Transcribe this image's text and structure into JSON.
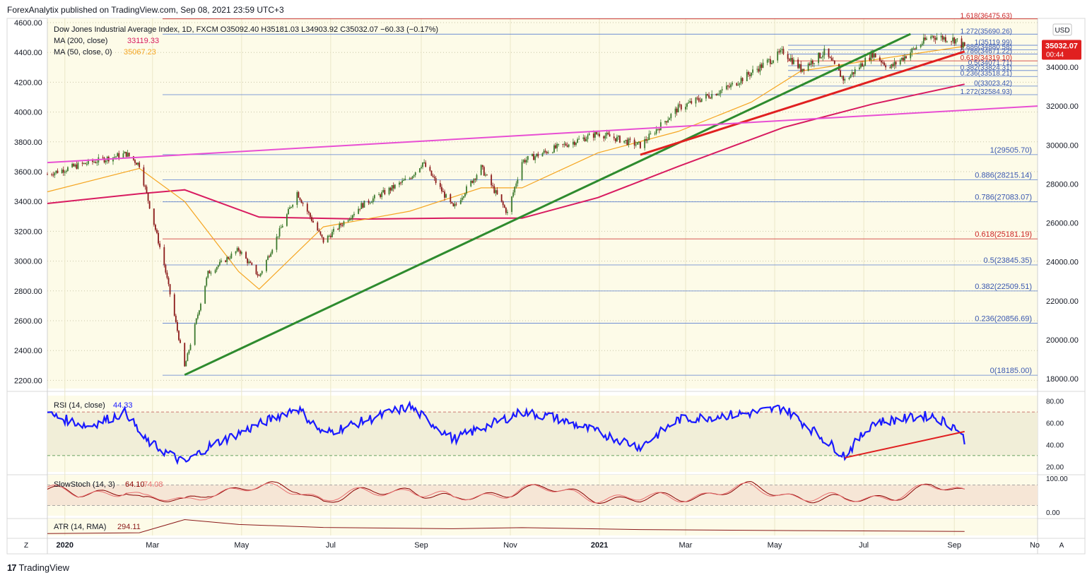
{
  "header": {
    "publisher_line": "ForexAnalytix published on TradingView.com, Sep 08, 2021 23:59 UTC+3",
    "footer_brand": "TradingView"
  },
  "legend": {
    "title_line": "Dow Jones Industrial Average Index, 1D, FXCM  O35092.40  H35181.03  L34903.92  C35032.07  −60.33 (−0.17%)",
    "ma200_label": "MA (200, close)",
    "ma200_value": "33119.33",
    "ma50_label": "MA (50, close, 0)",
    "ma50_value": "35067.23",
    "currency": "USD",
    "last_price": "35032.07",
    "countdown": "00:44",
    "rsi_label": "RSI (14, close)",
    "rsi_value": "44.33",
    "stoch_label": "SlowStoch (14, 3)",
    "stoch_k": "64.10",
    "stoch_d": "74.08",
    "atr_label": "ATR (14, RMA)",
    "atr_value": "294.11",
    "zoom_left": "Z",
    "auto_right": "A"
  },
  "colors": {
    "background": "#fdfbe8",
    "candle_up": "#3d7a2e",
    "candle_down": "#8b1a1a",
    "ma200": "#d81b60",
    "ma50": "#f5a623",
    "pink_line": "#e84fd3",
    "green_trend": "#2e8b2e",
    "red_trend": "#e02020",
    "fib_blue": "#5b7fd0",
    "rsi": "#1a1aff",
    "stoch_k": "#8b0000",
    "stoch_d": "#e87070",
    "atr": "#8b1a1a"
  },
  "chart_data": [
    {
      "type": "candlestick",
      "title": "Dow Jones Industrial Average Index, 1D, FXCM",
      "x_tick_labels": [
        "2020",
        "Mar",
        "May",
        "Jul",
        "Sep",
        "Nov",
        "2021",
        "Mar",
        "May",
        "Jul",
        "Sep",
        "No"
      ],
      "left_axis_ticks": [
        "4600.00",
        "4400.00",
        "4200.00",
        "4000.00",
        "3800.00",
        "3600.00",
        "3400.00",
        "3200.00",
        "3000.00",
        "2800.00",
        "2600.00",
        "2400.00",
        "2200.00"
      ],
      "right_axis_ticks": [
        "34000.00",
        "32000.00",
        "30000.00",
        "28000.00",
        "26000.00",
        "24000.00",
        "22000.00",
        "20000.00",
        "18000.00"
      ],
      "ylim": [
        17500,
        36500
      ],
      "series": [
        {
          "name": "Dow Jones Industrial Average Index",
          "x": [
            "2019-12-20",
            "2020-01-10",
            "2020-02-12",
            "2020-02-21",
            "2020-03-09",
            "2020-03-23",
            "2020-04-08",
            "2020-04-29",
            "2020-05-13",
            "2020-06-08",
            "2020-06-26",
            "2020-07-22",
            "2020-08-24",
            "2020-09-02",
            "2020-09-23",
            "2020-10-12",
            "2020-10-30",
            "2020-11-09",
            "2020-12-01",
            "2020-12-31",
            "2021-01-29",
            "2021-02-24",
            "2021-03-31",
            "2021-05-07",
            "2021-05-19",
            "2021-06-04",
            "2021-06-18",
            "2021-07-07",
            "2021-07-19",
            "2021-08-16",
            "2021-09-02",
            "2021-09-08"
          ],
          "values": [
            28500,
            28950,
            29550,
            28990,
            23850,
            18600,
            23430,
            24630,
            23250,
            27570,
            25060,
            26900,
            28300,
            29100,
            26760,
            28840,
            26500,
            29160,
            29820,
            30600,
            29980,
            31900,
            32980,
            34800,
            33900,
            34750,
            33300,
            34700,
            33960,
            35600,
            35400,
            35032
          ]
        },
        {
          "name": "MA (200, close)",
          "x": [
            "2019-12-20",
            "2020-02-21",
            "2020-03-23",
            "2020-05-13",
            "2020-07-22",
            "2020-09-23",
            "2020-11-09",
            "2020-12-31",
            "2021-02-24",
            "2021-05-07",
            "2021-07-07",
            "2021-09-08"
          ],
          "values": [
            27000,
            27500,
            27700,
            26300,
            26200,
            26250,
            26250,
            27300,
            28900,
            30900,
            32100,
            33119
          ]
        },
        {
          "name": "MA (50, close, 0)",
          "x": [
            "2019-12-20",
            "2020-02-21",
            "2020-03-23",
            "2020-04-29",
            "2020-05-13",
            "2020-06-26",
            "2020-08-24",
            "2020-10-12",
            "2020-11-09",
            "2020-12-31",
            "2021-02-24",
            "2021-04-15",
            "2021-05-19",
            "2021-07-19",
            "2021-09-08"
          ],
          "values": [
            27600,
            28800,
            27100,
            23500,
            22600,
            25800,
            26600,
            27800,
            27800,
            29600,
            30700,
            32200,
            33800,
            34500,
            35067
          ]
        }
      ],
      "fibonacci_levels_lower": [
        {
          "label": "1(29505.70)",
          "value": 29505.7
        },
        {
          "label": "0.886(28215.14)",
          "value": 28215.14
        },
        {
          "label": "0.786(27083.07)",
          "value": 27083.07
        },
        {
          "label": "0.618(25181.19)",
          "value": 25181.19
        },
        {
          "label": "0.5(23845.35)",
          "value": 23845.35
        },
        {
          "label": "0.382(22509.51)",
          "value": 22509.51
        },
        {
          "label": "0.236(20856.69)",
          "value": 20856.69
        },
        {
          "label": "0(18185.00)",
          "value": 18185.0
        }
      ],
      "fibonacci_levels_upper": [
        {
          "label": "1.618(36475.63)",
          "value": 36475.63
        },
        {
          "label": "1.272(35690.26)",
          "value": 35690.26
        },
        {
          "label": "1(35119.99)",
          "value": 35119.99
        },
        {
          "label": "0.886(34880.58)",
          "value": 34880.58
        },
        {
          "label": "0.786(34671.22)",
          "value": 34671.22
        },
        {
          "label": "0.618(34319.10)",
          "value": 34319.1
        },
        {
          "label": "0.5(34071.71)",
          "value": 34071.71
        },
        {
          "label": "0.382(33824.31)",
          "value": 33824.31
        },
        {
          "label": "0.236(33518.21)",
          "value": 33518.21
        },
        {
          "label": "0(33023.42)",
          "value": 33023.42
        },
        {
          "label": "1.272(32584.93)",
          "value": 32584.93
        }
      ],
      "trendlines": [
        {
          "name": "green",
          "from": [
            "2020-03-23",
            18200
          ],
          "to": [
            "2021-08-02",
            35700
          ]
        },
        {
          "name": "red",
          "from": [
            "2021-01-29",
            29500
          ],
          "to": [
            "2021-09-08",
            34800
          ]
        },
        {
          "name": "pink",
          "from": [
            "2019-12-20",
            29100
          ],
          "to": [
            "2021-10-28",
            32000
          ]
        }
      ]
    },
    {
      "type": "line",
      "title": "RSI (14, close)",
      "ylim": [
        15,
        85
      ],
      "right_axis_ticks": [
        "80.00",
        "60.00",
        "40.00",
        "20.00"
      ],
      "bands": [
        70,
        30
      ],
      "series": [
        {
          "name": "RSI (14, close)",
          "x": [
            "2019-12-20",
            "2020-01-17",
            "2020-02-12",
            "2020-02-24",
            "2020-03-23",
            "2020-04-08",
            "2020-06-08",
            "2020-06-26",
            "2020-08-24",
            "2020-09-23",
            "2020-11-09",
            "2020-12-01",
            "2021-01-29",
            "2021-02-24",
            "2021-04-15",
            "2021-05-07",
            "2021-06-18",
            "2021-07-07",
            "2021-08-16",
            "2021-09-02",
            "2021-09-08"
          ],
          "values": [
            68,
            57,
            70,
            45,
            23,
            38,
            74,
            50,
            75,
            45,
            70,
            65,
            38,
            63,
            69,
            74,
            30,
            60,
            67,
            56,
            44.33
          ]
        }
      ],
      "trendlines": [
        {
          "name": "red",
          "from": [
            "2021-06-18",
            28
          ],
          "to": [
            "2021-09-08",
            52
          ]
        }
      ]
    },
    {
      "type": "line",
      "title": "SlowStoch (14, 3)",
      "ylim": [
        -10,
        110
      ],
      "right_axis_ticks": [
        "100.00",
        "0.00"
      ],
      "bands": [
        80,
        20
      ],
      "series": [
        {
          "name": "%K",
          "x": [
            "2019-12-20",
            "2020-01-10",
            "2020-02-12",
            "2020-02-24",
            "2020-03-23",
            "2020-04-08",
            "2020-06-08",
            "2020-06-26",
            "2020-08-24",
            "2020-09-23",
            "2020-11-09",
            "2021-01-29",
            "2021-04-15",
            "2021-06-18",
            "2021-08-16",
            "2021-09-08"
          ],
          "values": [
            85,
            40,
            95,
            20,
            5,
            80,
            95,
            20,
            95,
            10,
            95,
            15,
            90,
            8,
            92,
            64.1
          ]
        },
        {
          "name": "%D",
          "x": [
            "2019-12-20",
            "2020-01-10",
            "2020-02-12",
            "2020-02-24",
            "2020-03-23",
            "2020-04-08",
            "2020-06-08",
            "2020-06-26",
            "2020-08-24",
            "2020-09-23",
            "2020-11-09",
            "2021-01-29",
            "2021-04-15",
            "2021-06-18",
            "2021-08-16",
            "2021-09-08"
          ],
          "values": [
            82,
            45,
            90,
            28,
            10,
            72,
            90,
            28,
            90,
            18,
            88,
            22,
            85,
            15,
            88,
            74.08
          ]
        }
      ]
    },
    {
      "type": "line",
      "title": "ATR (14, RMA)",
      "ylim": [
        100,
        900
      ],
      "series": [
        {
          "name": "ATR (14, RMA)",
          "x": [
            "2019-12-20",
            "2020-02-21",
            "2020-03-23",
            "2020-04-29",
            "2020-06-26",
            "2020-09-23",
            "2020-11-09",
            "2021-01-29",
            "2021-05-19",
            "2021-09-08"
          ],
          "values": [
            190,
            230,
            850,
            620,
            480,
            420,
            470,
            380,
            330,
            294.11
          ]
        }
      ]
    }
  ]
}
